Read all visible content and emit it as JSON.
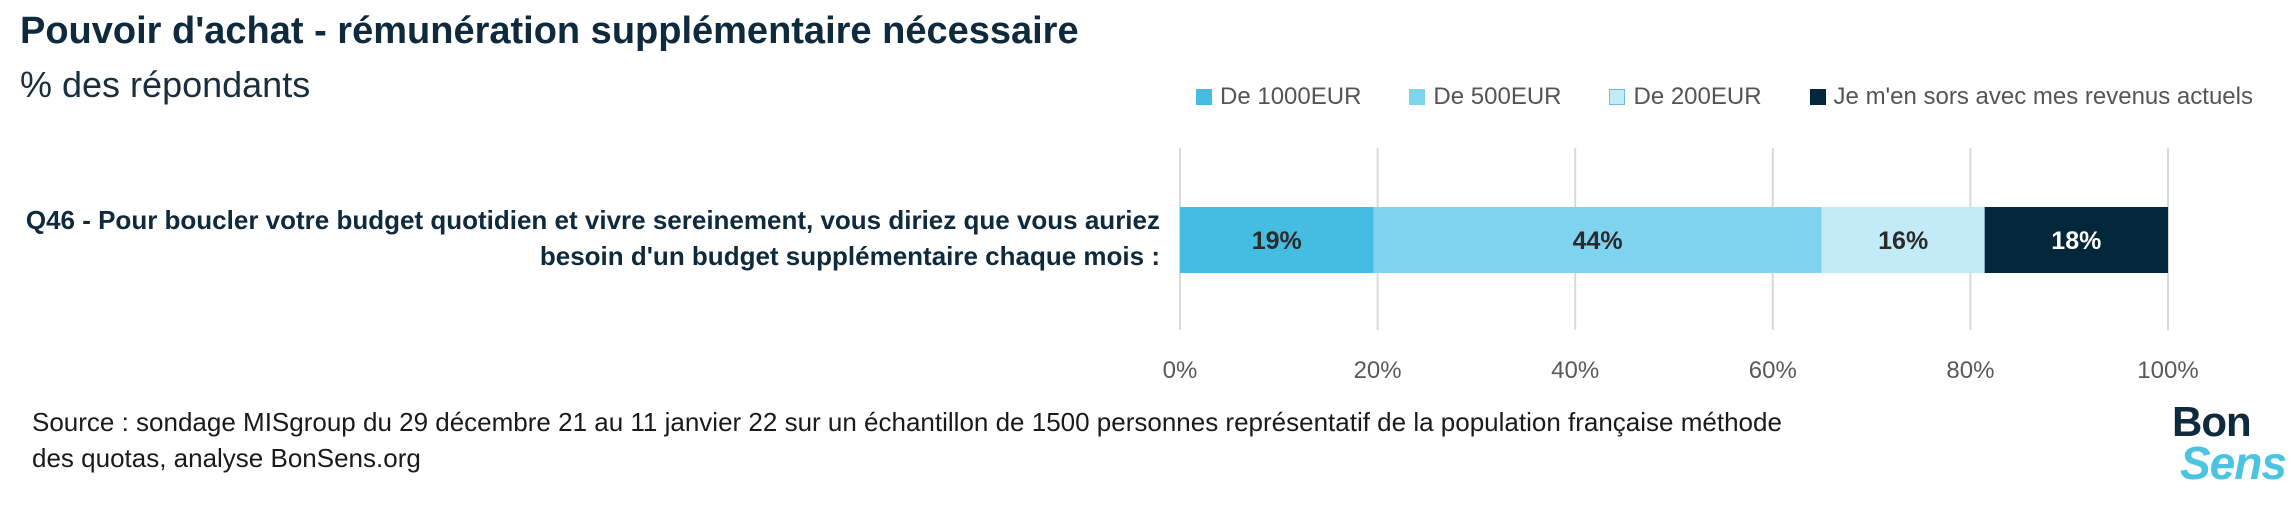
{
  "header": {
    "title": "Pouvoir d'achat - rémunération supplémentaire nécessaire",
    "subtitle": "% des répondants"
  },
  "chart_data": {
    "type": "bar",
    "orientation": "horizontal",
    "stacked": true,
    "percent_scale": true,
    "title": "Pouvoir d'achat - rémunération supplémentaire nécessaire",
    "subtitle": "% des répondants",
    "categories": [
      "Q46 - Pour boucler votre budget quotidien et vivre sereinement, vous diriez que vous auriez besoin d'un budget supplémentaire chaque mois :"
    ],
    "series": [
      {
        "name": "De 1000EUR",
        "values": [
          19
        ],
        "color": "#45bce2",
        "label_color": "#2b2b2b"
      },
      {
        "name": "De 500EUR",
        "values": [
          44
        ],
        "color": "#7fd3ef",
        "label_color": "#2b2b2b"
      },
      {
        "name": "De 200EUR",
        "values": [
          16
        ],
        "color": "#c3ebf7",
        "label_color": "#2b2b2b"
      },
      {
        "name": "Je m'en sors avec mes revenus actuels",
        "values": [
          18
        ],
        "color": "#02273a",
        "label_color": "#ffffff"
      }
    ],
    "data_labels": [
      "19%",
      "44%",
      "16%",
      "18%"
    ],
    "xticks": [
      "0%",
      "20%",
      "40%",
      "60%",
      "80%",
      "100%"
    ],
    "xlim": [
      0,
      100
    ],
    "grid": "vertical",
    "legend": "top-right"
  },
  "question": "Q46 - Pour boucler votre budget quotidien et vivre sereinement, vous diriez que vous auriez besoin d'un budget supplémentaire chaque mois :",
  "source": "Source : sondage MISgroup du 29 décembre 21 au 11 janvier 22 sur un échantillon de 1500 personnes représentatif de la population française méthode des quotas, analyse BonSens.org",
  "logo": {
    "line1": "Bon",
    "line2": "Sens"
  },
  "colors": {
    "title": "#0f2a3c",
    "grid": "#d9d9d9",
    "tick": "#595959"
  }
}
